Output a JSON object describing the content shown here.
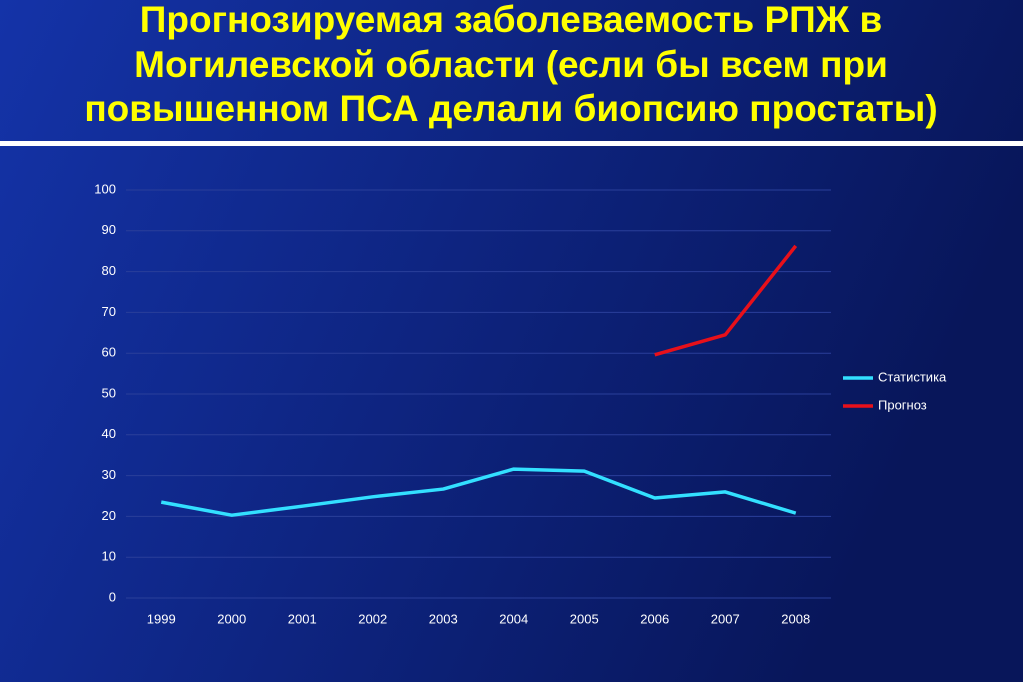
{
  "chart_data": {
    "type": "line",
    "title": [
      "Прогнозируемая заболеваемость РПЖ в",
      "Могилевской области  (если бы всем при",
      "повышенном ПСА делали биопсию простаты)"
    ],
    "categories": [
      "1999",
      "2000",
      "2001",
      "2002",
      "2003",
      "2004",
      "2005",
      "2006",
      "2007",
      "2008"
    ],
    "series": [
      {
        "name": "Статистика",
        "color": "#33e0ff",
        "values": [
          23.5,
          20.3,
          22.5,
          24.8,
          26.7,
          31.6,
          31.1,
          24.5,
          26,
          20.8
        ]
      },
      {
        "name": "Прогноз",
        "color": "#e8101a",
        "values": [
          null,
          null,
          null,
          null,
          null,
          null,
          null,
          59.6,
          64.5,
          86.3
        ]
      }
    ],
    "ylim": [
      0,
      100
    ],
    "yticks": [
      0,
      10,
      20,
      30,
      40,
      50,
      60,
      70,
      80,
      90,
      100
    ],
    "grid": true,
    "legend": "right"
  }
}
